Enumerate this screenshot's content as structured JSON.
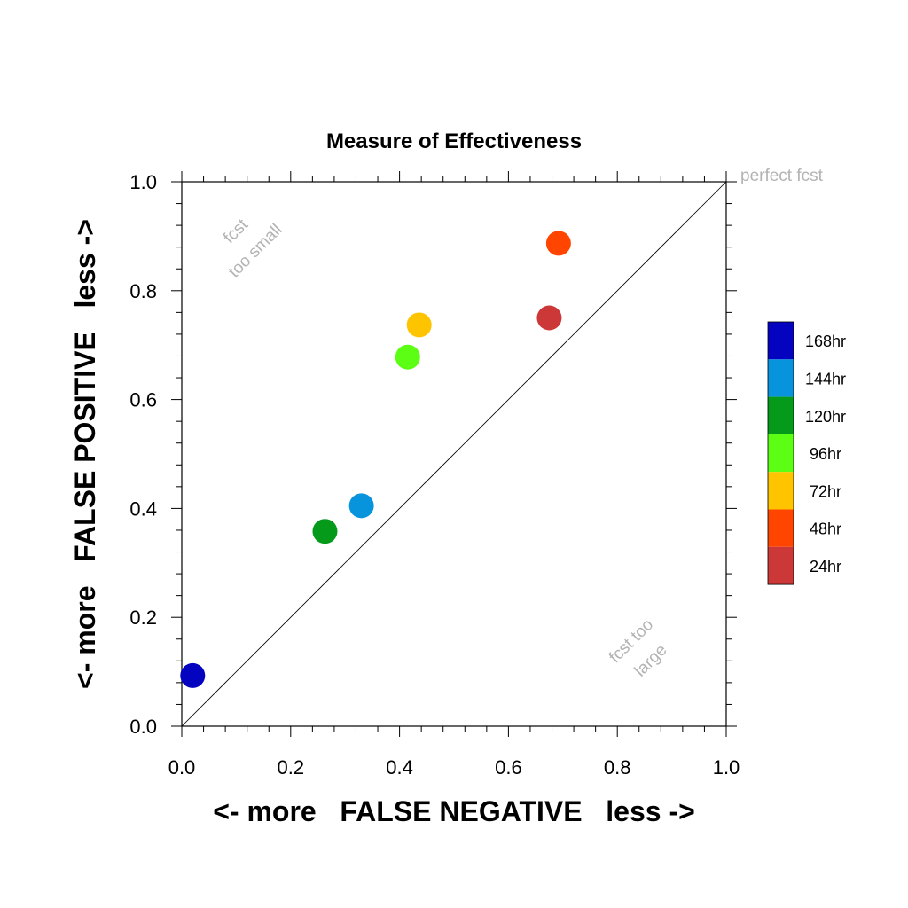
{
  "chart_data": {
    "type": "scatter",
    "title": "Measure of Effectiveness",
    "xlabel": "<- more   FALSE NEGATIVE   less ->",
    "ylabel": "<- more   FALSE POSITIVE   less ->",
    "xlim": [
      0,
      1
    ],
    "ylim": [
      0,
      1
    ],
    "xticks": [
      "0.0",
      "0.2",
      "0.4",
      "0.6",
      "0.8",
      "1.0"
    ],
    "yticks": [
      "0.0",
      "0.2",
      "0.4",
      "0.6",
      "0.8",
      "1.0"
    ],
    "grid": false,
    "diagonal_reference_line": true,
    "legend_position": "right",
    "annotations": {
      "top_right": "perfect fcst",
      "upper_left_line1": "fcst",
      "upper_left_line2": "too small",
      "lower_right_line1": "fcst too",
      "lower_right_line2": "large"
    },
    "series": [
      {
        "name": "168hr",
        "color": "#0404c0",
        "x": 0.02,
        "y": 0.093
      },
      {
        "name": "144hr",
        "color": "#0894dc",
        "x": 0.33,
        "y": 0.405
      },
      {
        "name": "120hr",
        "color": "#069a1a",
        "x": 0.263,
        "y": 0.358
      },
      {
        "name": "96hr",
        "color": "#5cff14",
        "x": 0.415,
        "y": 0.678
      },
      {
        "name": "72hr",
        "color": "#ffc400",
        "x": 0.436,
        "y": 0.737
      },
      {
        "name": "48hr",
        "color": "#ff4500",
        "x": 0.692,
        "y": 0.887
      },
      {
        "name": "24hr",
        "color": "#cc3838",
        "x": 0.675,
        "y": 0.75
      }
    ]
  }
}
